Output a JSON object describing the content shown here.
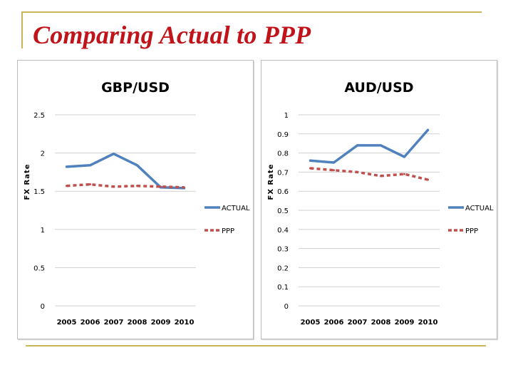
{
  "slide": {
    "title": "Comparing Actual to PPP"
  },
  "colors": {
    "actual": "#4f81bd",
    "ppp": "#c0504d",
    "gridline": "#cfcfcf",
    "title": "#c0141a",
    "rule": "#c9b458"
  },
  "chart_data": [
    {
      "type": "line",
      "title": "GBP/USD",
      "xlabel": "",
      "ylabel": "FX Rate",
      "x": [
        "2005",
        "2006",
        "2007",
        "2008",
        "2009",
        "2010"
      ],
      "ylim": [
        0,
        2.5
      ],
      "yticks": [
        "0",
        "0.5",
        "1",
        "1.5",
        "2",
        "2.5"
      ],
      "grid": true,
      "legend": "right",
      "series": [
        {
          "name": "ACTUAL",
          "style": "solid",
          "values": [
            1.82,
            1.84,
            1.99,
            1.84,
            1.55,
            1.54
          ]
        },
        {
          "name": "PPP",
          "style": "dashed",
          "values": [
            1.57,
            1.59,
            1.56,
            1.57,
            1.56,
            1.55
          ]
        }
      ]
    },
    {
      "type": "line",
      "title": "AUD/USD",
      "xlabel": "",
      "ylabel": "FX Rate",
      "x": [
        "2005",
        "2006",
        "2007",
        "2008",
        "2009",
        "2010"
      ],
      "ylim": [
        0,
        1
      ],
      "yticks": [
        "0",
        "0.1",
        "0.2",
        "0.3",
        "0.4",
        "0.5",
        "0.6",
        "0.7",
        "0.8",
        "0.9",
        "1"
      ],
      "grid": true,
      "legend": "right",
      "series": [
        {
          "name": "ACTUAL",
          "style": "solid",
          "values": [
            0.76,
            0.75,
            0.84,
            0.84,
            0.78,
            0.92
          ]
        },
        {
          "name": "PPP",
          "style": "dashed",
          "values": [
            0.72,
            0.71,
            0.7,
            0.68,
            0.69,
            0.66
          ]
        }
      ]
    }
  ]
}
